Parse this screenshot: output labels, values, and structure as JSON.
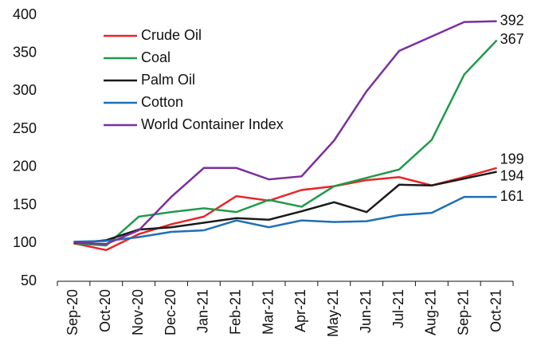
{
  "chart_data": {
    "type": "line",
    "categories": [
      "Sep-20",
      "Oct-20",
      "Nov-20",
      "Dec-20",
      "Jan-21",
      "Feb-21",
      "Mar-21",
      "Apr-21",
      "May-21",
      "Jun-21",
      "Jul-21",
      "Aug-21",
      "Sep-21",
      "Oct-21"
    ],
    "series": [
      {
        "name": "Crude Oil",
        "color": "#e8262a",
        "values": [
          100,
          91,
          112,
          125,
          135,
          162,
          156,
          170,
          175,
          183,
          187,
          176,
          187,
          199
        ]
      },
      {
        "name": "Coal",
        "color": "#1e9a4b",
        "values": [
          100,
          97,
          135,
          141,
          146,
          141,
          157,
          148,
          175,
          186,
          197,
          236,
          322,
          367
        ]
      },
      {
        "name": "Palm Oil",
        "color": "#1a1a1a",
        "values": [
          100,
          104,
          118,
          121,
          127,
          133,
          131,
          142,
          154,
          141,
          177,
          176,
          185,
          194
        ]
      },
      {
        "name": "Cotton",
        "color": "#1f6fb5",
        "values": [
          102,
          103,
          108,
          115,
          117,
          130,
          121,
          130,
          128,
          129,
          137,
          140,
          161,
          161
        ]
      },
      {
        "name": "World Container Index",
        "color": "#7b2fa0",
        "values": [
          101,
          99,
          117,
          161,
          199,
          199,
          184,
          188,
          235,
          300,
          353,
          372,
          391,
          392
        ]
      }
    ],
    "ylim": [
      50,
      400
    ],
    "yticks": [
      50,
      100,
      150,
      200,
      250,
      300,
      350,
      400
    ],
    "legend": "upper-left"
  }
}
